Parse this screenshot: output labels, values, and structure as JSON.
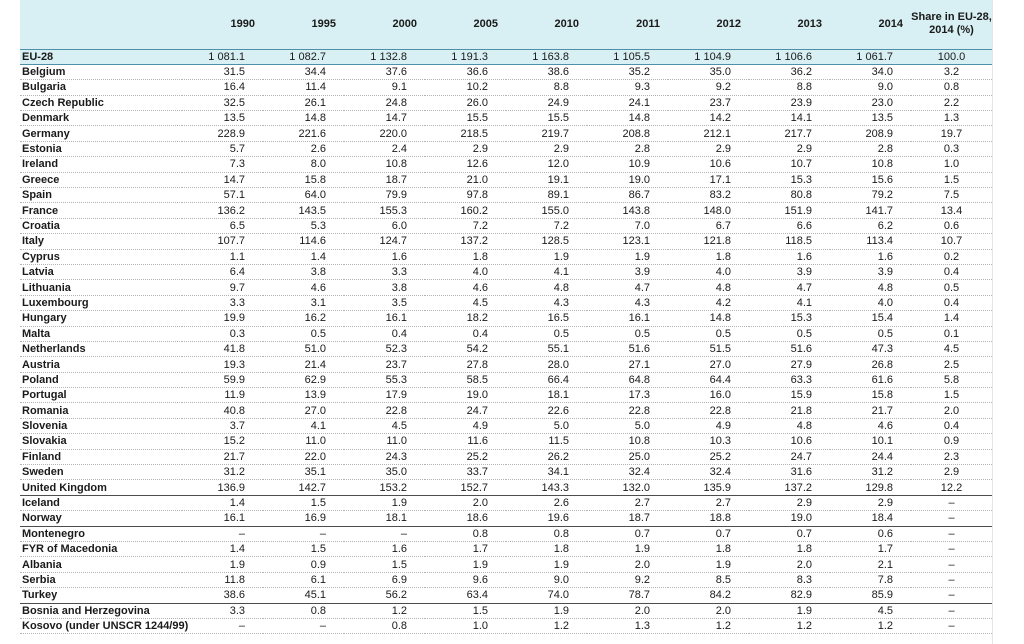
{
  "header": {
    "country_col": "",
    "years": [
      "1990",
      "1995",
      "2000",
      "2005",
      "2010",
      "2011",
      "2012",
      "2013",
      "2014"
    ],
    "share_label": "Share in EU-28, 2014 (%)"
  },
  "rows": [
    {
      "name": "EU-28",
      "v": [
        "1 081.1",
        "1 082.7",
        "1 132.8",
        "1 191.3",
        "1 163.8",
        "1 105.5",
        "1 104.9",
        "1 106.6",
        "1 061.7"
      ],
      "share": "100.0"
    },
    {
      "name": "Belgium",
      "v": [
        "31.5",
        "34.4",
        "37.6",
        "36.6",
        "38.6",
        "35.2",
        "35.0",
        "36.2",
        "34.0"
      ],
      "share": "3.2"
    },
    {
      "name": "Bulgaria",
      "v": [
        "16.4",
        "11.4",
        "9.1",
        "10.2",
        "8.8",
        "9.3",
        "9.2",
        "8.8",
        "9.0"
      ],
      "share": "0.8"
    },
    {
      "name": "Czech Republic",
      "v": [
        "32.5",
        "26.1",
        "24.8",
        "26.0",
        "24.9",
        "24.1",
        "23.7",
        "23.9",
        "23.0"
      ],
      "share": "2.2"
    },
    {
      "name": "Denmark",
      "v": [
        "13.5",
        "14.8",
        "14.7",
        "15.5",
        "15.5",
        "14.8",
        "14.2",
        "14.1",
        "13.5"
      ],
      "share": "1.3"
    },
    {
      "name": "Germany",
      "v": [
        "228.9",
        "221.6",
        "220.0",
        "218.5",
        "219.7",
        "208.8",
        "212.1",
        "217.7",
        "208.9"
      ],
      "share": "19.7"
    },
    {
      "name": "Estonia",
      "v": [
        "5.7",
        "2.6",
        "2.4",
        "2.9",
        "2.9",
        "2.8",
        "2.9",
        "2.9",
        "2.8"
      ],
      "share": "0.3"
    },
    {
      "name": "Ireland",
      "v": [
        "7.3",
        "8.0",
        "10.8",
        "12.6",
        "12.0",
        "10.9",
        "10.6",
        "10.7",
        "10.8"
      ],
      "share": "1.0"
    },
    {
      "name": "Greece",
      "v": [
        "14.7",
        "15.8",
        "18.7",
        "21.0",
        "19.1",
        "19.0",
        "17.1",
        "15.3",
        "15.6"
      ],
      "share": "1.5"
    },
    {
      "name": "Spain",
      "v": [
        "57.1",
        "64.0",
        "79.9",
        "97.8",
        "89.1",
        "86.7",
        "83.2",
        "80.8",
        "79.2"
      ],
      "share": "7.5"
    },
    {
      "name": "France",
      "v": [
        "136.2",
        "143.5",
        "155.3",
        "160.2",
        "155.0",
        "143.8",
        "148.0",
        "151.9",
        "141.7"
      ],
      "share": "13.4"
    },
    {
      "name": "Croatia",
      "v": [
        "6.5",
        "5.3",
        "6.0",
        "7.2",
        "7.2",
        "7.0",
        "6.7",
        "6.6",
        "6.2"
      ],
      "share": "0.6"
    },
    {
      "name": "Italy",
      "v": [
        "107.7",
        "114.6",
        "124.7",
        "137.2",
        "128.5",
        "123.1",
        "121.8",
        "118.5",
        "113.4"
      ],
      "share": "10.7"
    },
    {
      "name": "Cyprus",
      "v": [
        "1.1",
        "1.4",
        "1.6",
        "1.8",
        "1.9",
        "1.9",
        "1.8",
        "1.6",
        "1.6"
      ],
      "share": "0.2"
    },
    {
      "name": "Latvia",
      "v": [
        "6.4",
        "3.8",
        "3.3",
        "4.0",
        "4.1",
        "3.9",
        "4.0",
        "3.9",
        "3.9"
      ],
      "share": "0.4"
    },
    {
      "name": "Lithuania",
      "v": [
        "9.7",
        "4.6",
        "3.8",
        "4.6",
        "4.8",
        "4.7",
        "4.8",
        "4.7",
        "4.8"
      ],
      "share": "0.5"
    },
    {
      "name": "Luxembourg",
      "v": [
        "3.3",
        "3.1",
        "3.5",
        "4.5",
        "4.3",
        "4.3",
        "4.2",
        "4.1",
        "4.0"
      ],
      "share": "0.4"
    },
    {
      "name": "Hungary",
      "v": [
        "19.9",
        "16.2",
        "16.1",
        "18.2",
        "16.5",
        "16.1",
        "14.8",
        "15.3",
        "15.4"
      ],
      "share": "1.4"
    },
    {
      "name": "Malta",
      "v": [
        "0.3",
        "0.5",
        "0.4",
        "0.4",
        "0.5",
        "0.5",
        "0.5",
        "0.5",
        "0.5"
      ],
      "share": "0.1"
    },
    {
      "name": "Netherlands",
      "v": [
        "41.8",
        "51.0",
        "52.3",
        "54.2",
        "55.1",
        "51.6",
        "51.5",
        "51.6",
        "47.3"
      ],
      "share": "4.5"
    },
    {
      "name": "Austria",
      "v": [
        "19.3",
        "21.4",
        "23.7",
        "27.8",
        "28.0",
        "27.1",
        "27.0",
        "27.9",
        "26.8"
      ],
      "share": "2.5"
    },
    {
      "name": "Poland",
      "v": [
        "59.9",
        "62.9",
        "55.3",
        "58.5",
        "66.4",
        "64.8",
        "64.4",
        "63.3",
        "61.6"
      ],
      "share": "5.8"
    },
    {
      "name": "Portugal",
      "v": [
        "11.9",
        "13.9",
        "17.9",
        "19.0",
        "18.1",
        "17.3",
        "16.0",
        "15.9",
        "15.8"
      ],
      "share": "1.5"
    },
    {
      "name": "Romania",
      "v": [
        "40.8",
        "27.0",
        "22.8",
        "24.7",
        "22.6",
        "22.8",
        "22.8",
        "21.8",
        "21.7"
      ],
      "share": "2.0"
    },
    {
      "name": "Slovenia",
      "v": [
        "3.7",
        "4.1",
        "4.5",
        "4.9",
        "5.0",
        "5.0",
        "4.9",
        "4.8",
        "4.6"
      ],
      "share": "0.4"
    },
    {
      "name": "Slovakia",
      "v": [
        "15.2",
        "11.0",
        "11.0",
        "11.6",
        "11.5",
        "10.8",
        "10.3",
        "10.6",
        "10.1"
      ],
      "share": "0.9"
    },
    {
      "name": "Finland",
      "v": [
        "21.7",
        "22.0",
        "24.3",
        "25.2",
        "26.2",
        "25.0",
        "25.2",
        "24.7",
        "24.4"
      ],
      "share": "2.3"
    },
    {
      "name": "Sweden",
      "v": [
        "31.2",
        "35.1",
        "35.0",
        "33.7",
        "34.1",
        "32.4",
        "32.4",
        "31.6",
        "31.2"
      ],
      "share": "2.9"
    },
    {
      "name": "United Kingdom",
      "v": [
        "136.9",
        "142.7",
        "153.2",
        "152.7",
        "143.3",
        "132.0",
        "135.9",
        "137.2",
        "129.8"
      ],
      "share": "12.2"
    },
    {
      "name": "Iceland",
      "v": [
        "1.4",
        "1.5",
        "1.9",
        "2.0",
        "2.6",
        "2.7",
        "2.7",
        "2.9",
        "2.9"
      ],
      "share": "–"
    },
    {
      "name": "Norway",
      "v": [
        "16.1",
        "16.9",
        "18.1",
        "18.6",
        "19.6",
        "18.7",
        "18.8",
        "19.0",
        "18.4"
      ],
      "share": "–"
    },
    {
      "name": "Montenegro",
      "v": [
        "–",
        "–",
        "–",
        "0.8",
        "0.8",
        "0.7",
        "0.7",
        "0.7",
        "0.6"
      ],
      "share": "–"
    },
    {
      "name": "FYR of Macedonia",
      "v": [
        "1.4",
        "1.5",
        "1.6",
        "1.7",
        "1.8",
        "1.9",
        "1.8",
        "1.8",
        "1.7"
      ],
      "share": "–"
    },
    {
      "name": "Albania",
      "v": [
        "1.9",
        "0.9",
        "1.5",
        "1.9",
        "1.9",
        "2.0",
        "1.9",
        "2.0",
        "2.1"
      ],
      "share": "–"
    },
    {
      "name": "Serbia",
      "v": [
        "11.8",
        "6.1",
        "6.9",
        "9.6",
        "9.0",
        "9.2",
        "8.5",
        "8.3",
        "7.8"
      ],
      "share": "–"
    },
    {
      "name": "Turkey",
      "v": [
        "38.6",
        "45.1",
        "56.2",
        "63.4",
        "74.0",
        "78.7",
        "84.2",
        "82.9",
        "85.9"
      ],
      "share": "–"
    },
    {
      "name": "Bosnia and Herzegovina",
      "v": [
        "3.3",
        "0.8",
        "1.2",
        "1.5",
        "1.9",
        "2.0",
        "2.0",
        "1.9",
        "4.5"
      ],
      "share": "–"
    },
    {
      "name": "Kosovo (under UNSCR 1244/99)",
      "v": [
        "–",
        "–",
        "0.8",
        "1.0",
        "1.2",
        "1.3",
        "1.2",
        "1.2",
        "1.2"
      ],
      "share": "–"
    }
  ]
}
